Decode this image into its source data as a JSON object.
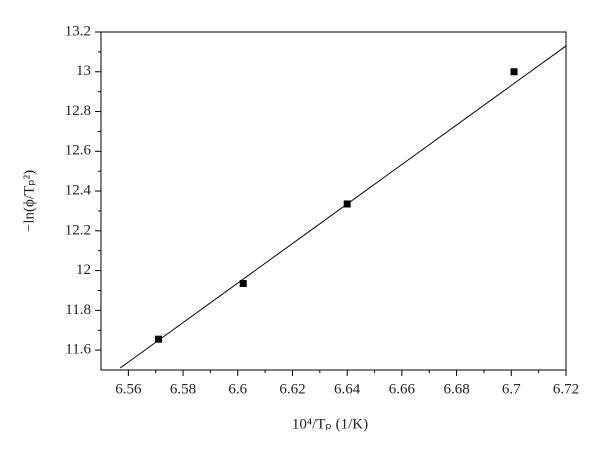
{
  "chart_data": {
    "type": "scatter",
    "x_label": "10⁴/Tₚ (1/K)",
    "y_label": "−ln(ϕ/Tₚ²)",
    "x": [
      6.571,
      6.602,
      6.64,
      6.701
    ],
    "values": [
      11.655,
      11.935,
      12.335,
      13.0
    ],
    "color": "#000000",
    "fit_line": {
      "x": [
        6.557,
        6.72
      ],
      "y": [
        11.51,
        13.13
      ]
    },
    "xlim": [
      6.55,
      6.72
    ],
    "xticks": [
      6.56,
      6.58,
      6.6,
      6.62,
      6.64,
      6.66,
      6.68,
      6.7,
      6.72
    ],
    "ylim": [
      11.5,
      13.2
    ],
    "yticks": [
      11.6,
      11.8,
      12,
      12.2,
      12.4,
      12.6,
      12.8,
      13,
      13.2
    ]
  }
}
